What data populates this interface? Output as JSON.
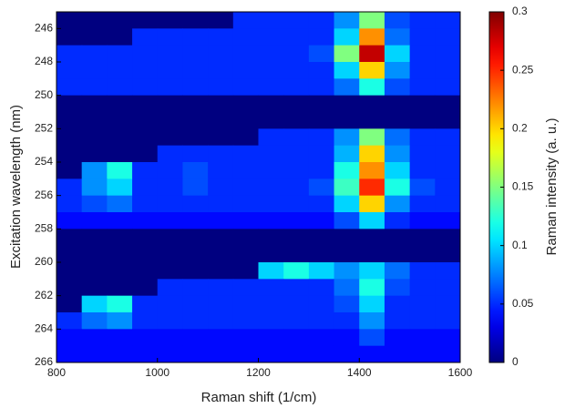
{
  "chart_data": {
    "type": "heatmap",
    "xlabel": "Raman shift (1/cm)",
    "ylabel": "Excitation wavelength (nm)",
    "colorbar_label": "Raman intensity (a. u.)",
    "colormap": "jet",
    "x_bins": [
      800,
      850,
      900,
      950,
      1000,
      1050,
      1100,
      1150,
      1200,
      1250,
      1300,
      1350,
      1400,
      1450,
      1500,
      1550,
      1600
    ],
    "y_bins": [
      245,
      246,
      247,
      248,
      249,
      250,
      251,
      252,
      253,
      254,
      255,
      256,
      257,
      258,
      259,
      260,
      261,
      262,
      263,
      264,
      265,
      266
    ],
    "values": [
      [
        0,
        0,
        0,
        0,
        0,
        0,
        0,
        0.05,
        0.05,
        0.05,
        0.05,
        0.08,
        0.15,
        0.06,
        0.05,
        0.05
      ],
      [
        0,
        0,
        0,
        0.05,
        0.05,
        0.05,
        0.05,
        0.05,
        0.05,
        0.05,
        0.05,
        0.1,
        0.22,
        0.07,
        0.05,
        0.05
      ],
      [
        0.05,
        0.05,
        0.05,
        0.05,
        0.05,
        0.05,
        0.05,
        0.05,
        0.05,
        0.05,
        0.06,
        0.15,
        0.28,
        0.1,
        0.05,
        0.05
      ],
      [
        0.05,
        0.05,
        0.05,
        0.05,
        0.05,
        0.05,
        0.05,
        0.05,
        0.05,
        0.05,
        0.05,
        0.1,
        0.2,
        0.08,
        0.05,
        0.05
      ],
      [
        0.05,
        0.05,
        0.05,
        0.05,
        0.05,
        0.05,
        0.05,
        0.05,
        0.05,
        0.05,
        0.05,
        0.07,
        0.12,
        0.06,
        0.05,
        0.05
      ],
      [
        0,
        0,
        0,
        0,
        0,
        0,
        0,
        0,
        0,
        0,
        0,
        0,
        0,
        0,
        0,
        0
      ],
      [
        0,
        0,
        0,
        0,
        0,
        0,
        0,
        0,
        0,
        0,
        0,
        0,
        0,
        0,
        0,
        0
      ],
      [
        0,
        0,
        0,
        0,
        0,
        0,
        0,
        0,
        0.05,
        0.05,
        0.05,
        0.08,
        0.15,
        0.07,
        0.05,
        0.05
      ],
      [
        0,
        0,
        0,
        0,
        0.05,
        0.05,
        0.05,
        0.05,
        0.05,
        0.05,
        0.05,
        0.09,
        0.2,
        0.08,
        0.05,
        0.05
      ],
      [
        0,
        0.08,
        0.12,
        0.05,
        0.05,
        0.06,
        0.05,
        0.05,
        0.05,
        0.05,
        0.05,
        0.12,
        0.22,
        0.1,
        0.05,
        0.05
      ],
      [
        0.05,
        0.08,
        0.1,
        0.05,
        0.05,
        0.06,
        0.05,
        0.05,
        0.05,
        0.05,
        0.06,
        0.13,
        0.25,
        0.12,
        0.06,
        0.05
      ],
      [
        0.05,
        0.06,
        0.07,
        0.05,
        0.05,
        0.05,
        0.05,
        0.05,
        0.05,
        0.05,
        0.05,
        0.1,
        0.2,
        0.08,
        0.05,
        0.05
      ],
      [
        0.04,
        0.04,
        0.04,
        0.04,
        0.04,
        0.04,
        0.04,
        0.04,
        0.04,
        0.04,
        0.04,
        0.06,
        0.1,
        0.05,
        0.04,
        0.04
      ],
      [
        0,
        0,
        0,
        0,
        0,
        0,
        0,
        0,
        0,
        0,
        0,
        0,
        0,
        0,
        0,
        0
      ],
      [
        0,
        0,
        0,
        0,
        0,
        0,
        0,
        0,
        0,
        0,
        0,
        0,
        0,
        0,
        0,
        0
      ],
      [
        0,
        0,
        0,
        0,
        0,
        0,
        0,
        0,
        0.1,
        0.12,
        0.1,
        0.08,
        0.1,
        0.07,
        0.05,
        0.05
      ],
      [
        0,
        0,
        0,
        0,
        0.05,
        0.05,
        0.05,
        0.05,
        0.05,
        0.05,
        0.05,
        0.07,
        0.12,
        0.06,
        0.05,
        0.05
      ],
      [
        0,
        0.1,
        0.12,
        0.05,
        0.05,
        0.05,
        0.05,
        0.05,
        0.05,
        0.05,
        0.05,
        0.06,
        0.1,
        0.05,
        0.05,
        0.05
      ],
      [
        0.05,
        0.07,
        0.08,
        0.05,
        0.05,
        0.05,
        0.05,
        0.05,
        0.05,
        0.05,
        0.05,
        0.05,
        0.08,
        0.05,
        0.05,
        0.05
      ],
      [
        0.04,
        0.04,
        0.04,
        0.04,
        0.04,
        0.04,
        0.04,
        0.04,
        0.04,
        0.04,
        0.04,
        0.04,
        0.06,
        0.04,
        0.04,
        0.04
      ],
      [
        0.04,
        0.04,
        0.04,
        0.04,
        0.04,
        0.04,
        0.04,
        0.04,
        0.04,
        0.04,
        0.04,
        0.04,
        0.04,
        0.04,
        0.04,
        0.04
      ]
    ],
    "xlim": [
      800,
      1600
    ],
    "xticks": [
      800,
      1000,
      1200,
      1400,
      1600
    ],
    "ylim": [
      245,
      266
    ],
    "y_reversed": true,
    "yticks": [
      246,
      248,
      250,
      252,
      254,
      256,
      258,
      260,
      262,
      264,
      266
    ],
    "clim": [
      0,
      0.3
    ],
    "cticks": [
      0,
      0.05,
      0.1,
      0.15,
      0.2,
      0.25,
      0.3
    ]
  }
}
